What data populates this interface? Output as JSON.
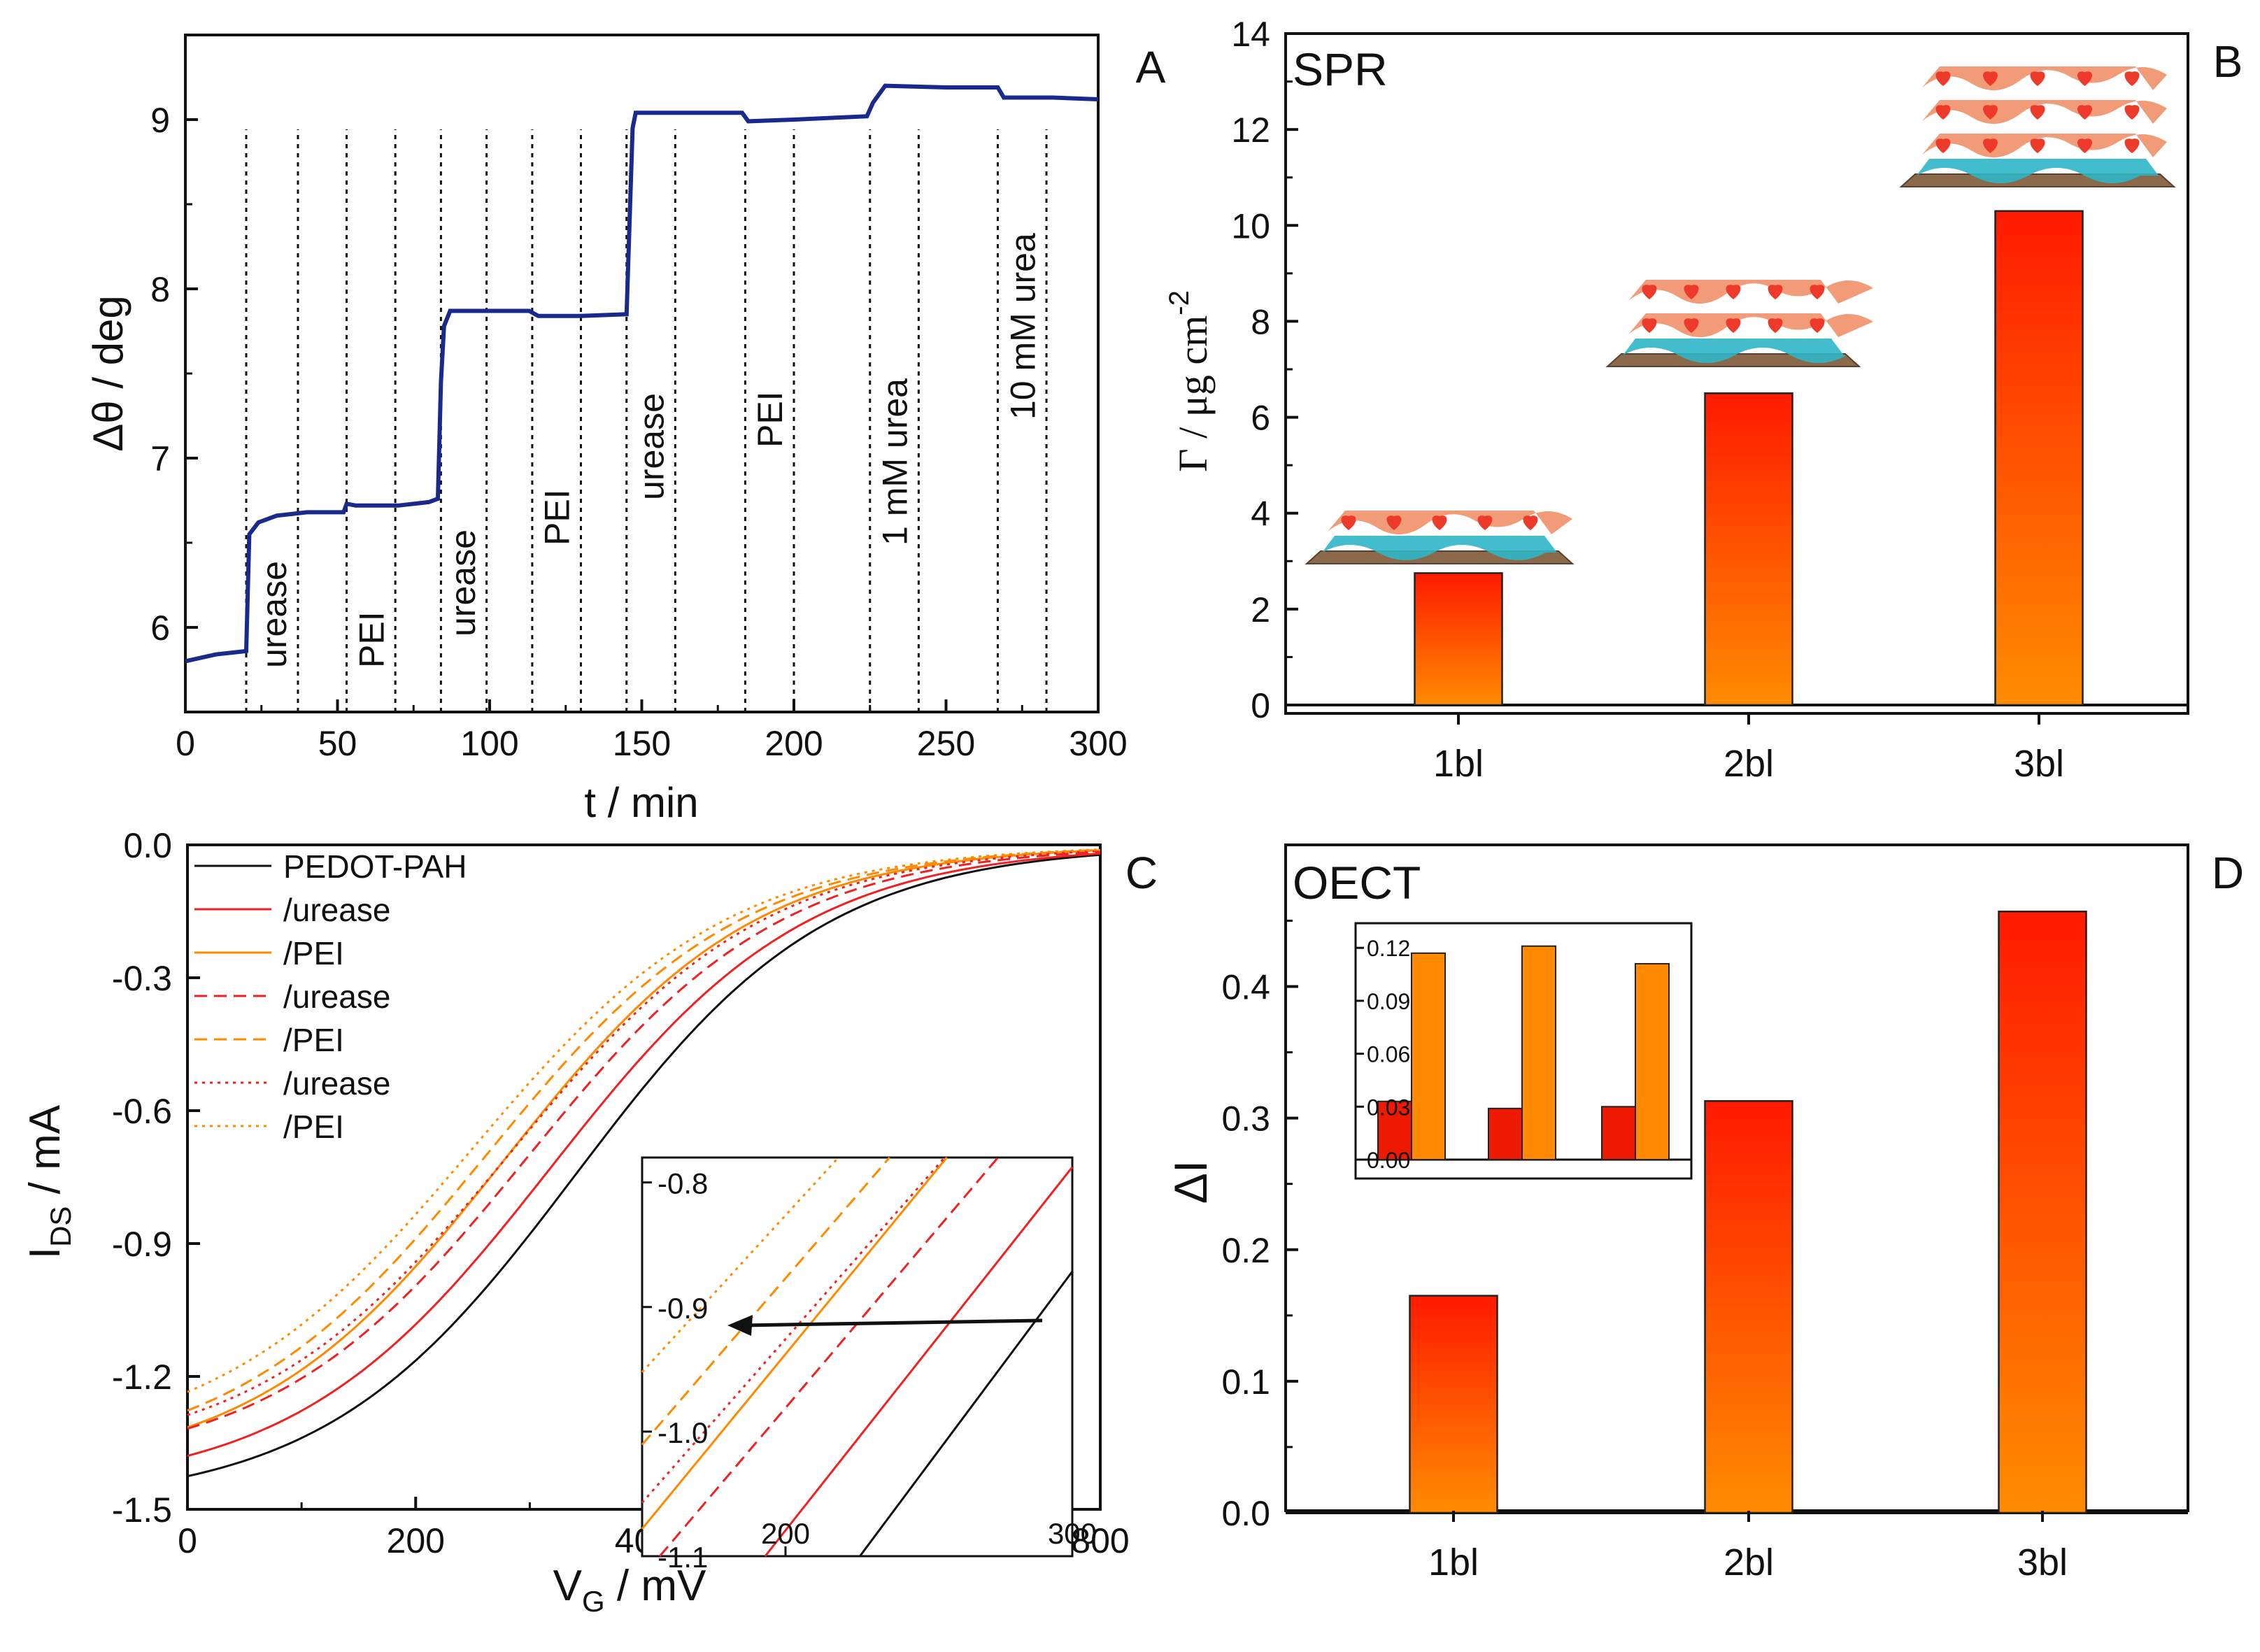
{
  "colors": {
    "navy": "#1a2a8c",
    "black": "#111111",
    "red": "#ee2222",
    "orange": "#ff8a00",
    "bar_top": "#ff1a00",
    "bar_bottom": "#ff8c00",
    "cyan": "#2fb6c8",
    "salmon": "#f08a60",
    "heart": "#ee3a2a",
    "substrate": "#8a6a4a"
  },
  "panels": {
    "A": {
      "letter": "A",
      "xlabel": "t / min",
      "ylabel": "Δθ / deg",
      "xticks": [
        "0",
        "50",
        "100",
        "150",
        "200",
        "250",
        "300"
      ],
      "yticks": [
        "6",
        "7",
        "8",
        "9"
      ],
      "step_labels": [
        "urease",
        "PEI",
        "urease",
        "PEI",
        "urease",
        "PEI",
        "1 mM urea",
        "10 mM urea"
      ]
    },
    "B": {
      "letter": "B",
      "title": "SPR",
      "ylabel_main": "Γ / μg cm",
      "ylabel_sup": "-2",
      "yticks": [
        "0",
        "2",
        "4",
        "6",
        "8",
        "10",
        "12",
        "14"
      ],
      "categories": [
        "1bl",
        "2bl",
        "3bl"
      ],
      "illustrations": [
        "multilayer-1bl-icon",
        "multilayer-2bl-icon",
        "multilayer-3bl-icon"
      ]
    },
    "C": {
      "letter": "C",
      "xlabel_main": "V",
      "xlabel_sub": "G",
      "xlabel_rest": " / mV",
      "ylabel_main": "I",
      "ylabel_sub": "DS",
      "ylabel_rest": " / mA",
      "xticks": [
        "0",
        "200",
        "400",
        "600",
        "800"
      ],
      "yticks": [
        "0.0",
        "-0.3",
        "-0.6",
        "-0.9",
        "-1.2",
        "-1.5"
      ],
      "legend": [
        "PEDOT-PAH",
        "/urease",
        "/PEI",
        "/urease",
        "/PEI",
        "/urease",
        "/PEI"
      ],
      "inset_xticks": [
        "200",
        "300"
      ],
      "inset_yticks": [
        "-0.8",
        "-0.9",
        "-1.0",
        "-1.1"
      ]
    },
    "D": {
      "letter": "D",
      "title": "OECT",
      "ylabel": "ΔI",
      "yticks": [
        "0.0",
        "0.1",
        "0.2",
        "0.3",
        "0.4"
      ],
      "categories": [
        "1bl",
        "2bl",
        "3bl"
      ],
      "inset_yticks": [
        "0.00",
        "0.03",
        "0.06",
        "0.09",
        "0.12"
      ]
    }
  },
  "chart_data": [
    {
      "panel": "A",
      "type": "line",
      "xlabel": "t / min",
      "ylabel": "Δθ / deg",
      "xlim": [
        0,
        300
      ],
      "ylim": [
        5.5,
        9.5
      ],
      "color": "#1a2a8c",
      "points": [
        [
          0,
          5.8
        ],
        [
          10,
          5.84
        ],
        [
          20,
          5.86
        ],
        [
          21,
          6.55
        ],
        [
          24,
          6.62
        ],
        [
          30,
          6.66
        ],
        [
          40,
          6.68
        ],
        [
          52,
          6.68
        ],
        [
          53,
          6.73
        ],
        [
          56,
          6.72
        ],
        [
          70,
          6.72
        ],
        [
          80,
          6.74
        ],
        [
          83,
          6.76
        ],
        [
          84,
          7.45
        ],
        [
          85,
          7.78
        ],
        [
          87,
          7.87
        ],
        [
          100,
          7.87
        ],
        [
          110,
          7.87
        ],
        [
          113,
          7.87
        ],
        [
          116,
          7.84
        ],
        [
          130,
          7.84
        ],
        [
          145,
          7.85
        ],
        [
          147,
          8.95
        ],
        [
          148,
          9.04
        ],
        [
          170,
          9.04
        ],
        [
          183,
          9.04
        ],
        [
          185,
          8.99
        ],
        [
          200,
          9.0
        ],
        [
          224,
          9.02
        ],
        [
          226,
          9.1
        ],
        [
          230,
          9.2
        ],
        [
          250,
          9.19
        ],
        [
          267,
          9.19
        ],
        [
          269,
          9.13
        ],
        [
          285,
          9.13
        ],
        [
          300,
          9.12
        ]
      ],
      "vlines": [
        20,
        37,
        53,
        69,
        84,
        99,
        114,
        130,
        145,
        161,
        184,
        200,
        225,
        241,
        267,
        283
      ],
      "step_label_x": [
        29,
        61,
        91,
        122,
        153,
        192,
        233,
        275
      ]
    },
    {
      "panel": "B",
      "type": "bar",
      "categories": [
        "1bl",
        "2bl",
        "3bl"
      ],
      "values": [
        2.75,
        6.5,
        10.3
      ],
      "ylabel": "Γ / μg cm-2",
      "ylim": [
        0,
        14
      ]
    },
    {
      "panel": "C",
      "type": "line",
      "xlabel": "VG / mV",
      "ylabel": "IDS / mA",
      "xlim": [
        0,
        800
      ],
      "ylim": [
        -1.5,
        0.0
      ],
      "series": [
        {
          "name": "PEDOT-PAH",
          "color": "#111111",
          "dash": "solid",
          "imax": 1.49,
          "v0": 340,
          "w": 110
        },
        {
          "name": "/urease",
          "color": "#ee2222",
          "dash": "solid",
          "imax": 1.46,
          "v0": 318,
          "w": 112
        },
        {
          "name": "/PEI",
          "color": "#ff8a00",
          "dash": "solid",
          "imax": 1.42,
          "v0": 278,
          "w": 110
        },
        {
          "name": "/urease",
          "color": "#ee2222",
          "dash": "dashed",
          "imax": 1.41,
          "v0": 298,
          "w": 112
        },
        {
          "name": "/PEI",
          "color": "#ff8a00",
          "dash": "dashed",
          "imax": 1.4,
          "v0": 262,
          "w": 112
        },
        {
          "name": "/urease",
          "color": "#ee2222",
          "dash": "dotted",
          "imax": 1.39,
          "v0": 283,
          "w": 112
        },
        {
          "name": "/PEI",
          "color": "#ff8a00",
          "dash": "dotted",
          "imax": 1.37,
          "v0": 250,
          "w": 113
        }
      ],
      "inset": {
        "xlim": [
          150,
          300
        ],
        "ylim": [
          -1.1,
          -0.78
        ]
      }
    },
    {
      "panel": "D",
      "type": "bar",
      "categories": [
        "1bl",
        "2bl",
        "3bl"
      ],
      "values": [
        0.165,
        0.313,
        0.457
      ],
      "ylabel": "ΔI",
      "ylim": [
        0,
        0.48
      ],
      "inset": {
        "series": [
          {
            "color": "#ee1a00",
            "values": [
              0.033,
              0.029,
              0.03
            ]
          },
          {
            "color": "#ff8a00",
            "values": [
              0.117,
              0.121,
              0.111
            ]
          }
        ],
        "ylim": [
          0,
          0.13
        ]
      }
    }
  ]
}
